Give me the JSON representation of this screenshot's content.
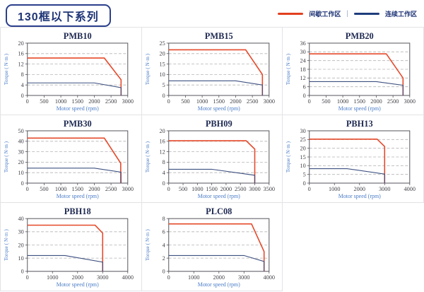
{
  "header": {
    "title": "130框以下系列"
  },
  "legend": {
    "intermittent": "间歇工作区",
    "separator": "|",
    "continuous": "连续工作区"
  },
  "colors": {
    "intermittent": "#e2401f",
    "continuous": "#1e3d7b",
    "curve_red": "#e5492a",
    "curve_blue": "#3d5080",
    "grid_line": "#b3b3b3",
    "plot_frame": "#55555e",
    "title_text": "#1f2a52",
    "axis_label_blue": "#4a7cc7",
    "cell_border": "#e3e3e7",
    "header_border": "#2b3f8c",
    "header_text": "#1e3476"
  },
  "chart_data": [
    {
      "type": "line",
      "title": "PMB10",
      "xlabel": "Motor speed (rpm)",
      "ylabel": "Torque ( N·m )",
      "xlim": [
        0,
        3000
      ],
      "xticks": [
        0,
        500,
        1000,
        1500,
        2000,
        2500,
        3000
      ],
      "ylim": [
        0,
        20
      ],
      "yticks": [
        0,
        4,
        8,
        12,
        16,
        20
      ],
      "grid": "horizontal-dashed",
      "legend_position": "none",
      "series": [
        {
          "name": "间歇工作区",
          "color": "#e5492a",
          "points": [
            [
              0,
              14.3
            ],
            [
              2300,
              14.3
            ],
            [
              2800,
              6
            ],
            [
              2800,
              0
            ]
          ]
        },
        {
          "name": "连续工作区",
          "color": "#3d5080",
          "points": [
            [
              0,
              4.8
            ],
            [
              2000,
              4.8
            ],
            [
              2800,
              3
            ],
            [
              2800,
              0
            ]
          ]
        }
      ]
    },
    {
      "type": "line",
      "title": "PMB15",
      "xlabel": "Motor speed (rpm)",
      "ylabel": "Torque ( N·m )",
      "xlim": [
        0,
        3000
      ],
      "xticks": [
        0,
        500,
        1000,
        1500,
        2000,
        2500,
        3000
      ],
      "ylim": [
        0,
        25
      ],
      "yticks": [
        0,
        5,
        10,
        15,
        20,
        25
      ],
      "grid": "horizontal-dashed",
      "legend_position": "none",
      "series": [
        {
          "name": "间歇工作区",
          "color": "#e5492a",
          "points": [
            [
              0,
              21.8
            ],
            [
              2300,
              21.8
            ],
            [
              2800,
              10
            ],
            [
              2800,
              0
            ]
          ]
        },
        {
          "name": "连续工作区",
          "color": "#3d5080",
          "points": [
            [
              0,
              7
            ],
            [
              2000,
              7
            ],
            [
              2800,
              5
            ],
            [
              2800,
              0
            ]
          ]
        }
      ]
    },
    {
      "type": "line",
      "title": "PMB20",
      "xlabel": "Motor speed (rpm)",
      "ylabel": "Torque ( N·m )",
      "xlim": [
        0,
        3000
      ],
      "xticks": [
        0,
        500,
        1000,
        1500,
        2000,
        2500,
        3000
      ],
      "ylim": [
        0,
        36
      ],
      "yticks": [
        0,
        6,
        12,
        18,
        24,
        30,
        36
      ],
      "grid": "horizontal-dashed",
      "legend_position": "none",
      "series": [
        {
          "name": "间歇工作区",
          "color": "#e5492a",
          "points": [
            [
              0,
              28.6
            ],
            [
              2300,
              28.6
            ],
            [
              2800,
              12
            ],
            [
              2800,
              0
            ]
          ]
        },
        {
          "name": "连续工作区",
          "color": "#3d5080",
          "points": [
            [
              0,
              9.5
            ],
            [
              2000,
              9.5
            ],
            [
              2800,
              7
            ],
            [
              2800,
              0
            ]
          ]
        }
      ]
    },
    {
      "type": "line",
      "title": "PMB30",
      "xlabel": "Motor speed (rpm)",
      "ylabel": "Torque ( N·m )",
      "xlim": [
        0,
        3000
      ],
      "xticks": [
        0,
        500,
        1000,
        1500,
        2000,
        2500,
        3000
      ],
      "ylim": [
        0,
        50
      ],
      "yticks": [
        0,
        10,
        20,
        30,
        40,
        50
      ],
      "grid": "horizontal-dashed",
      "legend_position": "none",
      "series": [
        {
          "name": "间歇工作区",
          "color": "#e5492a",
          "points": [
            [
              0,
              43
            ],
            [
              2300,
              43
            ],
            [
              2790,
              19
            ],
            [
              2790,
              0
            ]
          ]
        },
        {
          "name": "连续工作区",
          "color": "#3d5080",
          "points": [
            [
              0,
              14.3
            ],
            [
              2000,
              14.3
            ],
            [
              2800,
              10.5
            ],
            [
              2800,
              0
            ]
          ]
        }
      ]
    },
    {
      "type": "line",
      "title": "PBH09",
      "xlabel": "Motor speed (rpm)",
      "ylabel": "Torque ( N·m )",
      "xlim": [
        0,
        3500
      ],
      "xticks": [
        0,
        500,
        1000,
        1500,
        2000,
        2500,
        3000,
        3500
      ],
      "ylim": [
        0,
        20
      ],
      "yticks": [
        0,
        4,
        8,
        12,
        16,
        20
      ],
      "grid": "horizontal-dashed",
      "legend_position": "none",
      "series": [
        {
          "name": "间歇工作区",
          "color": "#e5492a",
          "points": [
            [
              0,
              16.2
            ],
            [
              2700,
              16.2
            ],
            [
              3000,
              13
            ],
            [
              3000,
              0
            ]
          ]
        },
        {
          "name": "连续工作区",
          "color": "#3d5080",
          "points": [
            [
              0,
              5.3
            ],
            [
              1500,
              5.3
            ],
            [
              3000,
              3
            ],
            [
              3000,
              0
            ]
          ]
        }
      ]
    },
    {
      "type": "line",
      "title": "PBH13",
      "xlabel": "Motor speed (rpm)",
      "ylabel": "Torque ( N·m )",
      "xlim": [
        0,
        4000
      ],
      "xticks": [
        0,
        1000,
        2000,
        3000,
        4000
      ],
      "ylim": [
        0,
        30
      ],
      "yticks": [
        0,
        5,
        10,
        15,
        20,
        25,
        30
      ],
      "grid": "horizontal-dashed",
      "legend_position": "none",
      "series": [
        {
          "name": "间歇工作区",
          "color": "#e5492a",
          "points": [
            [
              0,
              25.2
            ],
            [
              2700,
              25.2
            ],
            [
              3000,
              21
            ],
            [
              3000,
              0
            ]
          ]
        },
        {
          "name": "连续工作区",
          "color": "#3d5080",
          "points": [
            [
              0,
              8.3
            ],
            [
              1500,
              8.3
            ],
            [
              3000,
              5.2
            ],
            [
              3000,
              0
            ]
          ]
        }
      ]
    },
    {
      "type": "line",
      "title": "PBH18",
      "xlabel": "Motor speed (rpm)",
      "ylabel": "Torque ( N·m )",
      "xlim": [
        0,
        4000
      ],
      "xticks": [
        0,
        1000,
        2000,
        3000,
        4000
      ],
      "ylim": [
        0,
        40
      ],
      "yticks": [
        0,
        10,
        20,
        30,
        40
      ],
      "grid": "horizontal-dashed",
      "legend_position": "none",
      "series": [
        {
          "name": "间歇工作区",
          "color": "#e5492a",
          "points": [
            [
              0,
              35
            ],
            [
              2700,
              35
            ],
            [
              3000,
              29
            ],
            [
              3000,
              0
            ]
          ]
        },
        {
          "name": "连续工作区",
          "color": "#3d5080",
          "points": [
            [
              0,
              12
            ],
            [
              1500,
              12
            ],
            [
              3000,
              7
            ],
            [
              3000,
              0
            ]
          ]
        }
      ]
    },
    {
      "type": "line",
      "title": "PLC08",
      "xlabel": "Motor speed (rpm)",
      "ylabel": "Torque ( N·m )",
      "xlim": [
        0,
        4000
      ],
      "xticks": [
        0,
        1000,
        2000,
        3000,
        4000
      ],
      "ylim": [
        0,
        8
      ],
      "yticks": [
        0,
        2,
        4,
        6,
        8
      ],
      "grid": "horizontal-dashed",
      "legend_position": "none",
      "series": [
        {
          "name": "间歇工作区",
          "color": "#e5492a",
          "points": [
            [
              0,
              7.2
            ],
            [
              3300,
              7.2
            ],
            [
              3800,
              3
            ],
            [
              3800,
              0
            ]
          ]
        },
        {
          "name": "连续工作区",
          "color": "#3d5080",
          "points": [
            [
              0,
              2.4
            ],
            [
              3000,
              2.4
            ],
            [
              3800,
              1.5
            ],
            [
              3800,
              0
            ]
          ]
        }
      ]
    }
  ]
}
